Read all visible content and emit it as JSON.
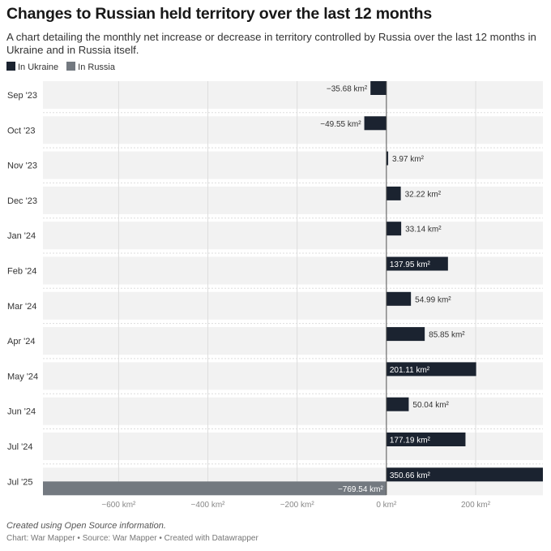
{
  "title": "Changes to Russian held territory over the last 12 months",
  "subtitle": "A chart detailing the monthly net increase or decrease in territory controlled by Russia over the last 12 months in Ukraine and in Russia itself.",
  "footer": {
    "note": "Created using Open Source information.",
    "credit": "Chart: War Mapper • Source: War Mapper • Created with Datawrapper"
  },
  "chart_data": {
    "type": "bar",
    "orientation": "horizontal",
    "categories": [
      "Sep '23",
      "Oct '23",
      "Nov '23",
      "Dec '23",
      "Jan '24",
      "Feb '24",
      "Mar '24",
      "Apr '24",
      "May '24",
      "Jun '24",
      "Jul '24",
      "Jul '25"
    ],
    "series": [
      {
        "name": "In Ukraine",
        "color": "#1b2330",
        "values": [
          -35.68,
          -49.55,
          3.97,
          32.22,
          33.14,
          137.95,
          54.99,
          85.85,
          201.11,
          50.04,
          177.19,
          350.66
        ]
      },
      {
        "name": "In Russia",
        "color": "#737980",
        "values": [
          null,
          null,
          null,
          null,
          null,
          null,
          null,
          null,
          null,
          null,
          null,
          -769.54
        ]
      }
    ],
    "unit": "km²",
    "xlim": [
      -769.54,
      350.66
    ],
    "xticks": [
      -600,
      -400,
      -200,
      0,
      200
    ],
    "xtick_labels": [
      "−600 km²",
      "−400 km²",
      "−200 km²",
      "0 km²",
      "200 km²"
    ],
    "grid": true,
    "legend": "top-left"
  }
}
